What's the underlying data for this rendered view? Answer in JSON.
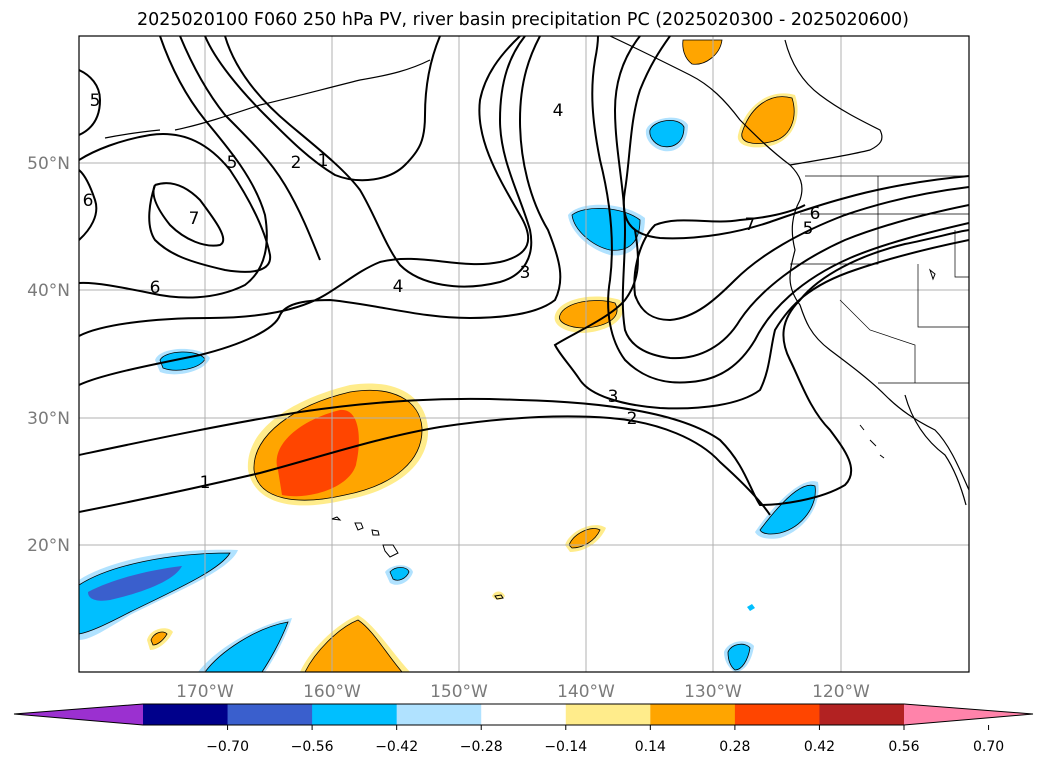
{
  "title": "2025020100 F060 250 hPa PV, river basin precipitation PC (2025020300 - 2025020600)",
  "map": {
    "lon_labels": [
      "170°W",
      "160°W",
      "150°W",
      "140°W",
      "130°W",
      "120°W"
    ],
    "lat_labels": [
      "50°N",
      "40°N",
      "30°N",
      "20°N"
    ],
    "pv_contour_labels": [
      "1",
      "2",
      "3",
      "4",
      "5",
      "6",
      "7"
    ]
  },
  "colorbar": {
    "ticks": [
      "−0.70",
      "−0.56",
      "−0.42",
      "−0.28",
      "−0.14",
      "0.14",
      "0.28",
      "0.42",
      "0.56",
      "0.70"
    ],
    "colors": [
      "#9b30d0",
      "#00008b",
      "#3a5fcd",
      "#00bfff",
      "#b0e2ff",
      "#ffffff",
      "#ffec8b",
      "#ffa500",
      "#ff4500",
      "#b22222",
      "#ff83aa"
    ]
  }
}
